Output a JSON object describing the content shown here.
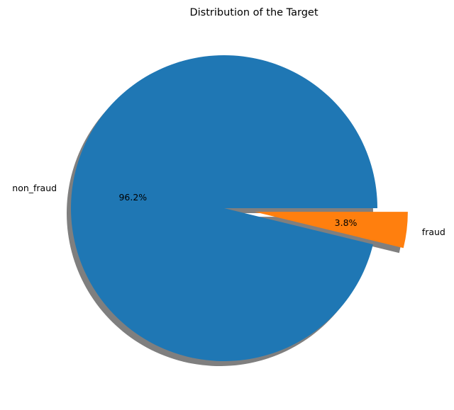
{
  "chart_data": {
    "type": "pie",
    "title": "Distribution of the Target",
    "categories": [
      "non_fraud",
      "fraud"
    ],
    "values": [
      96.2,
      3.8
    ],
    "value_labels": [
      "96.2%",
      "3.8%"
    ],
    "colors": [
      "#1f77b4",
      "#ff7f0e"
    ],
    "explode": [
      0,
      0.2
    ],
    "shadow": true,
    "start_angle_degrees": 0,
    "direction": "counterclockwise",
    "legend": "none"
  }
}
